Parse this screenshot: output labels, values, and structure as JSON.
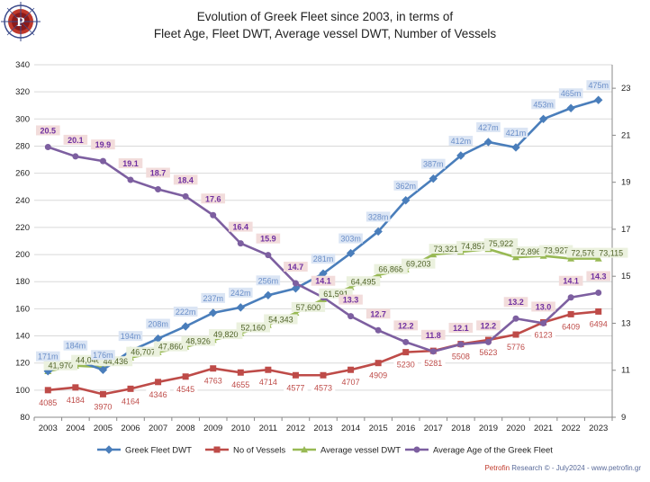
{
  "chart_data": {
    "type": "line",
    "title_line1": "Evolution of Greek Fleet since 2003, in terms of",
    "title_line2": "Fleet Age, Fleet DWT, Average vessel DWT, Number of Vessels",
    "categories": [
      "2003",
      "2004",
      "2005",
      "2006",
      "2007",
      "2008",
      "2009",
      "2010",
      "2011",
      "2012",
      "2013",
      "2014",
      "2015",
      "2016",
      "2017",
      "2018",
      "2019",
      "2020",
      "2021",
      "2022",
      "2023"
    ],
    "y_left": {
      "min": 80,
      "max": 340,
      "step": 20
    },
    "y_right": {
      "min": 9,
      "max": 24,
      "step": 2,
      "ticks": [
        9,
        11,
        13,
        15,
        17,
        19,
        21,
        23
      ]
    },
    "grid": true,
    "legend_position": "bottom",
    "series": [
      {
        "name": "Greek Fleet DWT",
        "axis": "left",
        "color": "#4a7ebb",
        "marker": "diamond",
        "values": [
          114,
          122,
          115,
          129,
          138,
          147,
          157,
          161,
          170,
          175,
          186,
          201,
          217,
          240,
          256,
          273,
          283,
          279,
          300,
          308,
          314
        ],
        "labels": [
          "171m",
          "184m",
          "176m",
          "194m",
          "208m",
          "222m",
          "237m",
          "242m",
          "256m",
          "",
          "281m",
          "303m",
          "328m",
          "362m",
          "387m",
          "412m",
          "427m",
          "421m",
          "453m",
          "465m",
          "475m"
        ]
      },
      {
        "name": "No of Vessels",
        "axis": "left",
        "color": "#be4b48",
        "marker": "square",
        "values": [
          100,
          102,
          97,
          101,
          106,
          110,
          116,
          113,
          115,
          111,
          111,
          115,
          120,
          128,
          129,
          134,
          137,
          141,
          150,
          156,
          158
        ],
        "labels": [
          "4085",
          "4184",
          "3970",
          "4164",
          "4346",
          "4545",
          "4763",
          "4655",
          "4714",
          "4577",
          "4573",
          "4707",
          "4909",
          "5230",
          "5281",
          "5508",
          "5623",
          "5776",
          "6123",
          "6409",
          "6494"
        ]
      },
      {
        "name": "Average vessel DWT",
        "axis": "left",
        "color": "#98b954",
        "marker": "triangle",
        "values": [
          114,
          118,
          117,
          124,
          128,
          132,
          137,
          142,
          148,
          157,
          167,
          176,
          185,
          189,
          200,
          202,
          204,
          198,
          199,
          197,
          197
        ],
        "labels": [
          "41,970",
          "44,046",
          "44,436",
          "46,707",
          "47,860",
          "48,926",
          "49,820",
          "52,160",
          "54,343",
          "57,600",
          "61,591",
          "64,495",
          "66,868",
          "69,203",
          "73,321",
          "74,857",
          "75,922",
          "72,896",
          "73,927",
          "72,576",
          "73,115"
        ]
      },
      {
        "name": "Average Age of the Greek Fleet",
        "axis": "right",
        "color": "#7d5fa0",
        "marker": "circle",
        "values": [
          20.5,
          20.1,
          19.9,
          19.1,
          18.7,
          18.4,
          17.6,
          16.4,
          15.9,
          14.7,
          14.1,
          13.3,
          12.7,
          12.2,
          11.8,
          12.1,
          12.2,
          13.2,
          13.0,
          14.1,
          14.3
        ],
        "labels": [
          "20.5",
          "20.1",
          "19.9",
          "19.1",
          "18.7",
          "18.4",
          "17.6",
          "16.4",
          "15.9",
          "14.7",
          "14.1",
          "13.3",
          "12.7",
          "12.2",
          "11.8",
          "12.1",
          "12.2",
          "13.2",
          "13.0",
          "14.1",
          "14.3"
        ]
      }
    ]
  },
  "logo": {
    "letter": "P",
    "colors": {
      "ring": "#c0392b",
      "inner": "#8b1a1a",
      "lines": "#3b4a8a"
    }
  },
  "footer": {
    "brand": "Petrofin",
    "text": " Research © - July2024 - www.petrofin.gr",
    "brand_color": "#c0392b"
  }
}
